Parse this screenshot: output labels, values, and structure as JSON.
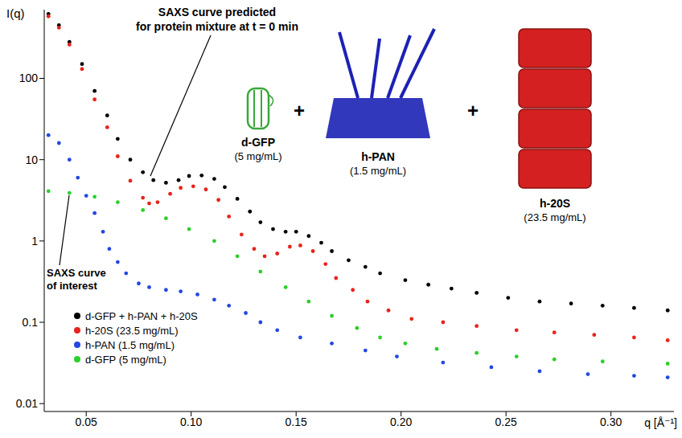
{
  "chart_data": {
    "type": "scatter",
    "marker": "circle",
    "log": "y",
    "grid": false,
    "legend": "lower left",
    "x_label": "q [Å⁻¹]",
    "y_label": "I(q)",
    "xlim": [
      0.03,
      0.33
    ],
    "xticks": [
      0.05,
      {
        "value": 0.1,
        "label": "0.10"
      },
      0.15,
      {
        "value": 0.2,
        "label": "0.20"
      },
      0.25,
      {
        "value": 0.3,
        "label": "0.30"
      }
    ],
    "ylim": [
      0.008,
      700
    ],
    "yticks": [
      0.01,
      0.1,
      1,
      10,
      100
    ],
    "series": [
      {
        "name": "d-GFP + h-PAN + h-20S",
        "color": "#000000",
        "x": [
          0.032,
          0.037,
          0.042,
          0.048,
          0.054,
          0.06,
          0.065,
          0.071,
          0.077,
          0.082,
          0.088,
          0.094,
          0.099,
          0.105,
          0.111,
          0.116,
          0.122,
          0.128,
          0.133,
          0.139,
          0.145,
          0.15,
          0.156,
          0.162,
          0.167,
          0.175,
          0.183,
          0.19,
          0.202,
          0.213,
          0.224,
          0.236,
          0.251,
          0.266,
          0.281,
          0.296,
          0.311,
          0.327
        ],
        "values": [
          620,
          450,
          280,
          150,
          70,
          35,
          18,
          10,
          7,
          5.6,
          5.2,
          5.6,
          6.3,
          6.4,
          5.8,
          4.6,
          3.3,
          2.3,
          1.7,
          1.4,
          1.3,
          1.3,
          1.15,
          0.95,
          0.75,
          0.58,
          0.48,
          0.4,
          0.33,
          0.29,
          0.26,
          0.23,
          0.2,
          0.18,
          0.17,
          0.16,
          0.15,
          0.14
        ]
      },
      {
        "name": "h-20S (23.5 mg/mL)",
        "color": "#e8231c",
        "x": [
          0.032,
          0.037,
          0.042,
          0.048,
          0.054,
          0.06,
          0.065,
          0.071,
          0.077,
          0.08,
          0.084,
          0.09,
          0.095,
          0.101,
          0.107,
          0.113,
          0.118,
          0.124,
          0.13,
          0.135,
          0.141,
          0.147,
          0.152,
          0.158,
          0.164,
          0.169,
          0.177,
          0.184,
          0.194,
          0.205,
          0.22,
          0.236,
          0.255,
          0.273,
          0.292,
          0.311,
          0.327
        ],
        "values": [
          580,
          420,
          260,
          130,
          55,
          25,
          11,
          5.5,
          3.4,
          2.9,
          3.0,
          3.8,
          4.5,
          4.7,
          4.3,
          3.2,
          2.0,
          1.2,
          0.8,
          0.65,
          0.7,
          0.85,
          0.88,
          0.75,
          0.52,
          0.35,
          0.25,
          0.18,
          0.14,
          0.11,
          0.1,
          0.09,
          0.08,
          0.075,
          0.07,
          0.065,
          0.06
        ]
      },
      {
        "name": "h-PAN (1.5 mg/mL)",
        "color": "#2348e0",
        "x": [
          0.032,
          0.037,
          0.042,
          0.046,
          0.05,
          0.054,
          0.058,
          0.061,
          0.065,
          0.069,
          0.075,
          0.08,
          0.088,
          0.095,
          0.103,
          0.111,
          0.118,
          0.126,
          0.133,
          0.141,
          0.152,
          0.167,
          0.183,
          0.198,
          0.22,
          0.243,
          0.266,
          0.289,
          0.311,
          0.327
        ],
        "values": [
          20,
          16,
          10,
          6,
          3.6,
          2.2,
          1.3,
          0.8,
          0.55,
          0.4,
          0.3,
          0.27,
          0.25,
          0.24,
          0.22,
          0.19,
          0.16,
          0.13,
          0.1,
          0.08,
          0.065,
          0.055,
          0.045,
          0.038,
          0.032,
          0.028,
          0.025,
          0.023,
          0.022,
          0.021
        ]
      },
      {
        "name": "d-GFP (5 mg/mL)",
        "color": "#2ccf2c",
        "x": [
          0.032,
          0.042,
          0.054,
          0.065,
          0.077,
          0.088,
          0.099,
          0.111,
          0.122,
          0.133,
          0.145,
          0.156,
          0.167,
          0.179,
          0.19,
          0.202,
          0.217,
          0.236,
          0.255,
          0.273,
          0.296,
          0.327
        ],
        "values": [
          4.1,
          3.9,
          3.5,
          3.0,
          2.4,
          1.9,
          1.4,
          1.0,
          0.65,
          0.42,
          0.27,
          0.18,
          0.12,
          0.085,
          0.065,
          0.055,
          0.047,
          0.042,
          0.038,
          0.035,
          0.033,
          0.031
        ]
      }
    ],
    "annotations": [
      {
        "text": [
          "SAXS curve predicted",
          "for protein mixture at t = 0 min"
        ]
      },
      {
        "text": [
          "SAXS curve",
          "of interest"
        ]
      }
    ],
    "components": [
      {
        "name": "d-GFP",
        "concentration": "(5 mg/mL)",
        "color": "#3aa83a"
      },
      {
        "name": "h-PAN",
        "concentration": "(1.5 mg/mL)",
        "color": "#1c22b4"
      },
      {
        "name": "h-20S",
        "concentration": "(23.5 mg/mL)",
        "color": "#d42020"
      }
    ],
    "separator": "+"
  }
}
